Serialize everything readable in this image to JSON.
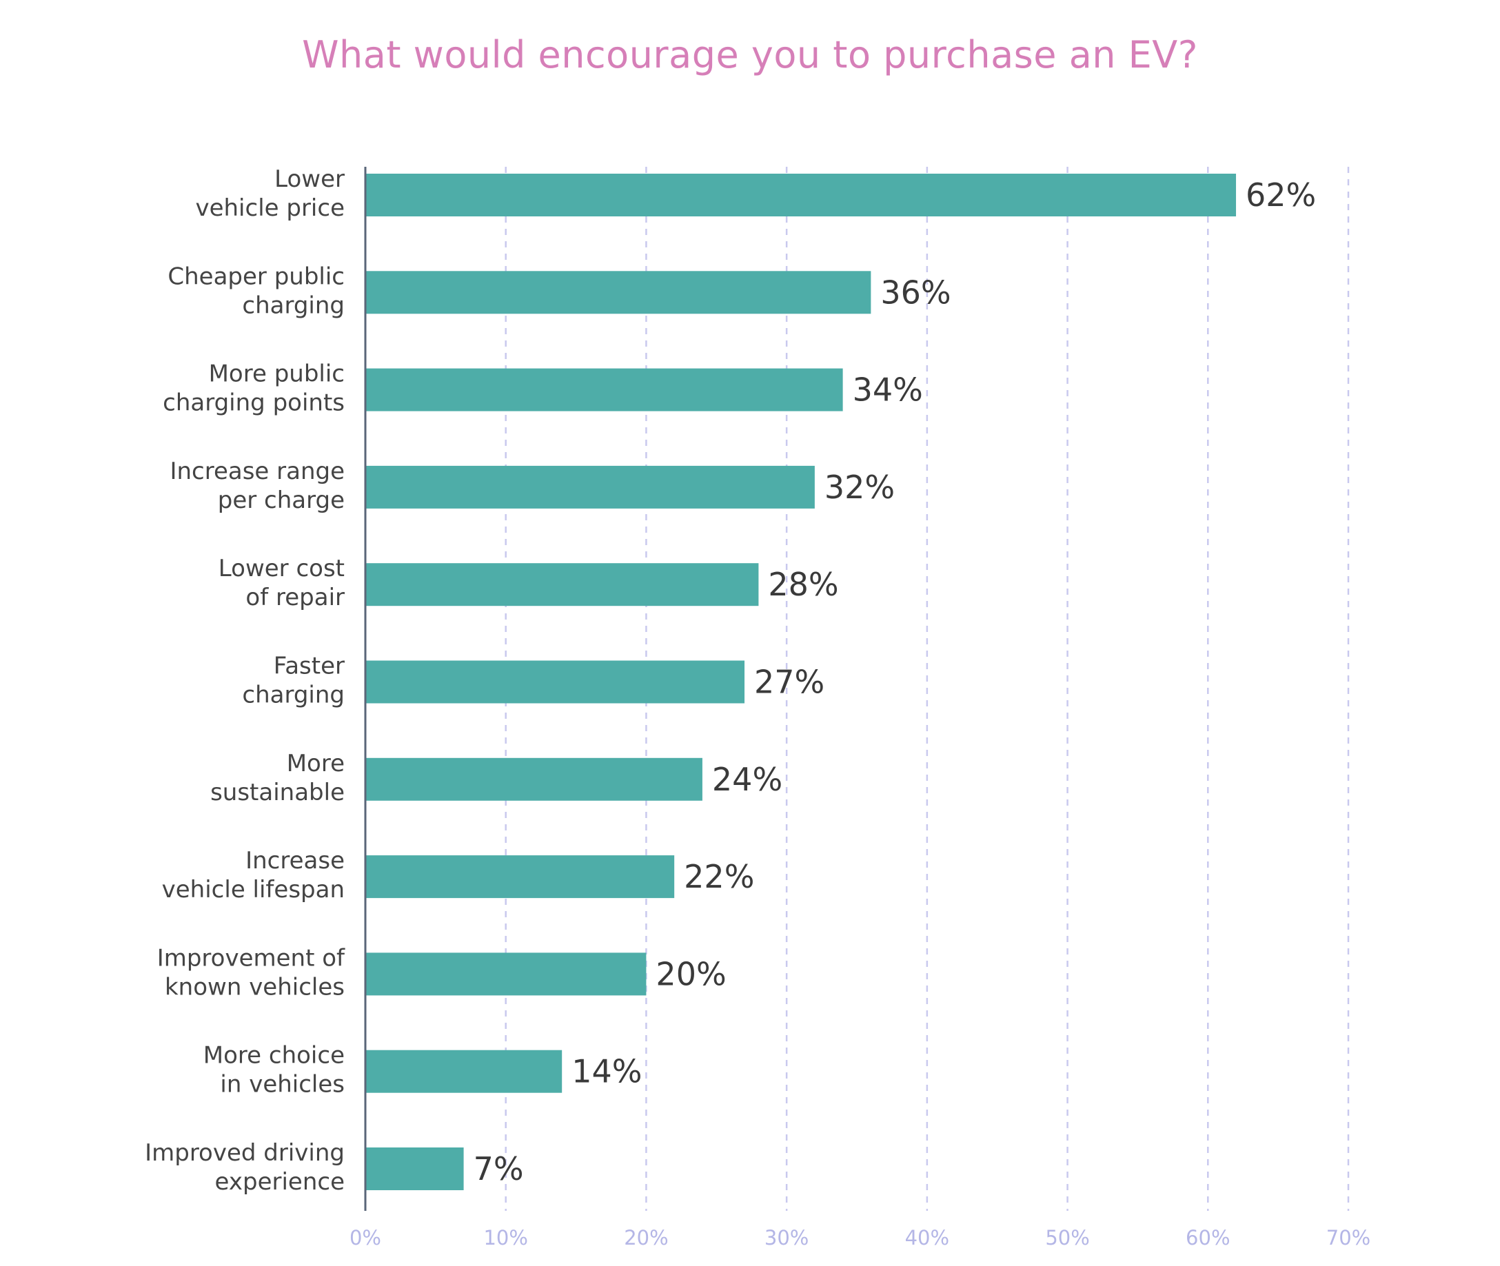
{
  "chart_data": {
    "type": "bar",
    "orientation": "horizontal",
    "title": "What would encourage you to purchase an EV?",
    "categories": [
      [
        "Lower",
        "vehicle price"
      ],
      [
        "Cheaper public",
        "charging"
      ],
      [
        "More public",
        "charging points"
      ],
      [
        "Increase range",
        "per charge"
      ],
      [
        "Lower cost",
        "of repair"
      ],
      [
        "Faster",
        "charging"
      ],
      [
        "More",
        "sustainable"
      ],
      [
        "Increase",
        "vehicle lifespan"
      ],
      [
        "Improvement of",
        "known vehicles"
      ],
      [
        "More choice",
        "in vehicles"
      ],
      [
        "Improved driving",
        "experience"
      ]
    ],
    "values": [
      62,
      36,
      34,
      32,
      28,
      27,
      24,
      22,
      20,
      14,
      7
    ],
    "data_labels": [
      "62%",
      "36%",
      "34%",
      "32%",
      "28%",
      "27%",
      "24%",
      "22%",
      "20%",
      "14%",
      "7%"
    ],
    "xlim": [
      0,
      70
    ],
    "xticks": [
      0,
      10,
      20,
      30,
      40,
      50,
      60,
      70
    ],
    "xtick_labels": [
      "0%",
      "10%",
      "20%",
      "30%",
      "40%",
      "50%",
      "60%",
      "70%"
    ],
    "grid": true,
    "legend": false
  },
  "colors": {
    "bar": "#4eada8",
    "title": "#d67fb8",
    "gridline": "#c9c9ee",
    "axis": "#5a6678",
    "tick_label": "#b4b6e6",
    "category_label": "#444444",
    "data_label": "#3a3a3a"
  }
}
